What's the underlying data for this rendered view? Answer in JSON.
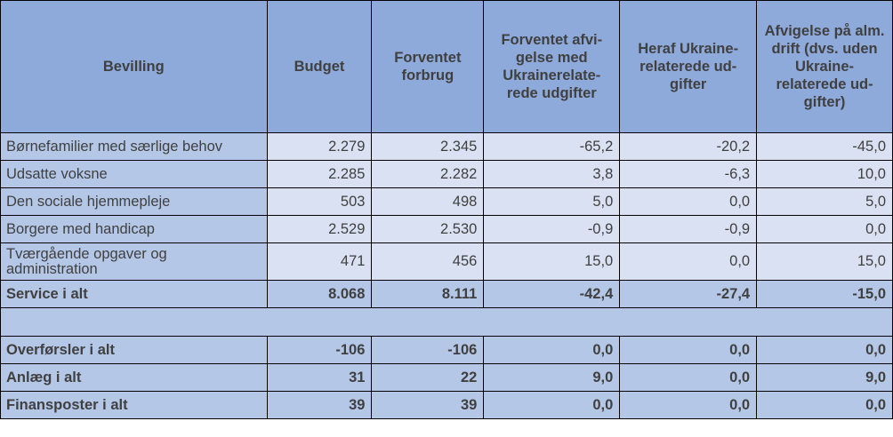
{
  "headers": [
    "Bevilling",
    "Budget",
    "Forventet forbrug",
    "Forventet afvi-gelse med Ukrainerelate-rede udgifter",
    "Heraf Ukraine-relaterede ud-gifter",
    "Afvigelse på alm. drift (dvs. uden Ukraine-relaterede ud-gifter)"
  ],
  "rows": [
    {
      "label": "Børnefamilier med særlige behov",
      "values": [
        "2.279",
        "2.345",
        "-65,2",
        "-20,2",
        "-45,0"
      ]
    },
    {
      "label": "Udsatte voksne",
      "values": [
        "2.285",
        "2.282",
        "3,8",
        "-6,3",
        "10,0"
      ]
    },
    {
      "label": "Den sociale hjemmepleje",
      "values": [
        "503",
        "498",
        "5,0",
        "0,0",
        "5,0"
      ]
    },
    {
      "label": "Borgere med handicap",
      "values": [
        "2.529",
        "2.530",
        "-0,9",
        "-0,9",
        "0,0"
      ]
    },
    {
      "label": "Tværgående opgaver og administration",
      "values": [
        "471",
        "456",
        "15,0",
        "0,0",
        "15,0"
      ]
    },
    {
      "label": "Service i alt",
      "values": [
        "8.068",
        "8.111",
        "-42,4",
        "-27,4",
        "-15,0"
      ]
    },
    {
      "label": "Overførsler i alt",
      "values": [
        "-106",
        "-106",
        "0,0",
        "0,0",
        "0,0"
      ]
    },
    {
      "label": "Anlæg i alt",
      "values": [
        "31",
        "22",
        "9,0",
        "0,0",
        "9,0"
      ]
    },
    {
      "label": "Finansposter i alt",
      "values": [
        "39",
        "39",
        "0,0",
        "0,0",
        "0,0"
      ]
    }
  ],
  "colors": {
    "header": "#8EAADB",
    "label": "#B4C7E7",
    "cell": "#D9E1F2",
    "text": "#404040"
  }
}
